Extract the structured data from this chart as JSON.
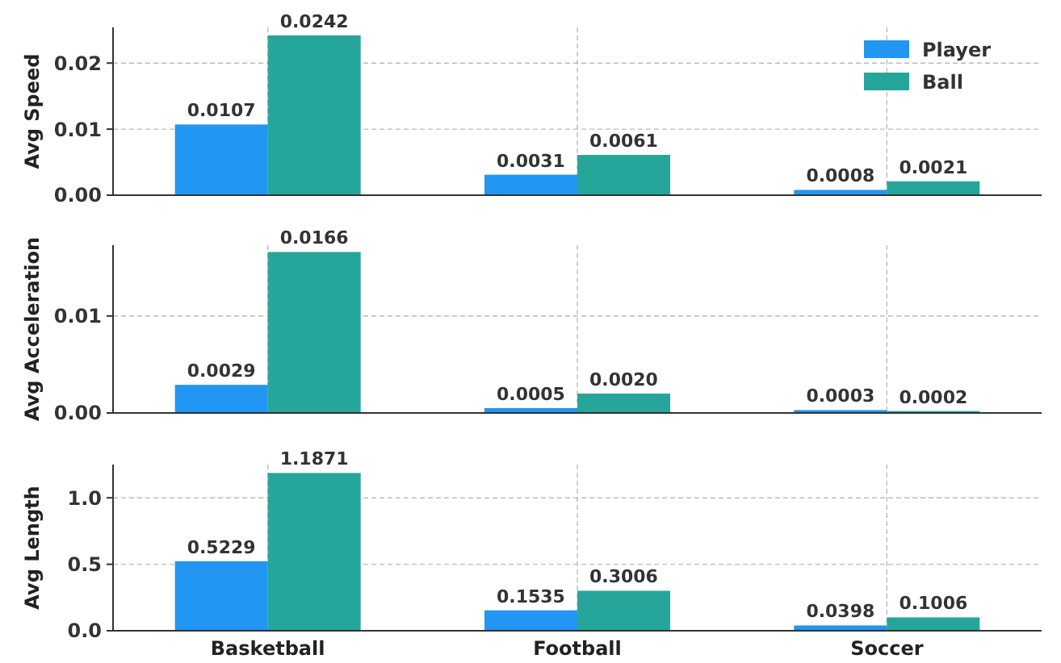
{
  "chart_data": [
    {
      "type": "bar",
      "ylabel": "Avg Speed",
      "categories": [
        null,
        null,
        null
      ],
      "ylim": [
        0,
        0.0254
      ],
      "yticks": [
        {
          "value": 0,
          "label": "0.00"
        },
        {
          "value": 0.01,
          "label": "0.01"
        },
        {
          "value": 0.02,
          "label": "0.02"
        }
      ],
      "grid": true,
      "legend": "top right",
      "tick_labels": "y",
      "series": [
        {
          "name": "Player",
          "color": "#2196f3",
          "values": [
            0.0107,
            0.0031,
            0.0008
          ],
          "value_labels": [
            "0.0107",
            "0.0031",
            "0.0008"
          ]
        },
        {
          "name": "Ball",
          "color": "#26a69a",
          "values": [
            0.0242,
            0.0061,
            0.0021
          ],
          "value_labels": [
            "0.0242",
            "0.0061",
            "0.0021"
          ]
        }
      ]
    },
    {
      "type": "bar",
      "ylabel": "Avg Acceleration",
      "categories": [
        null,
        null,
        null
      ],
      "ylim": [
        0,
        0.0173
      ],
      "yticks": [
        {
          "value": 0,
          "label": "0.00"
        },
        {
          "value": 0.01,
          "label": "0.01"
        }
      ],
      "grid": true,
      "tick_labels": "y",
      "series": [
        {
          "color": "#2196f3",
          "values": [
            0.0029,
            0.0005,
            0.0003
          ],
          "value_labels": [
            "0.0029",
            "0.0005",
            "0.0003"
          ]
        },
        {
          "color": "#26a69a",
          "values": [
            0.0166,
            0.002,
            0.0002
          ],
          "value_labels": [
            "0.0166",
            "0.0020",
            "0.0002"
          ]
        }
      ]
    },
    {
      "type": "bar",
      "ylabel": "Avg Length",
      "categories": [
        "Basketball",
        "Football",
        "Soccer"
      ],
      "ylim": [
        0,
        1.25
      ],
      "yticks": [
        {
          "value": 0,
          "label": "0.0"
        },
        {
          "value": 0.5,
          "label": "0.5"
        },
        {
          "value": 1,
          "label": "1.0"
        }
      ],
      "grid": true,
      "series": [
        {
          "color": "#2196f3",
          "values": [
            0.5229,
            0.1535,
            0.0398
          ],
          "value_labels": [
            "0.5229",
            "0.1535",
            "0.0398"
          ]
        },
        {
          "color": "#26a69a",
          "values": [
            1.1871,
            0.3006,
            0.1006
          ],
          "value_labels": [
            "1.1871",
            "0.3006",
            "0.1006"
          ]
        }
      ]
    }
  ]
}
